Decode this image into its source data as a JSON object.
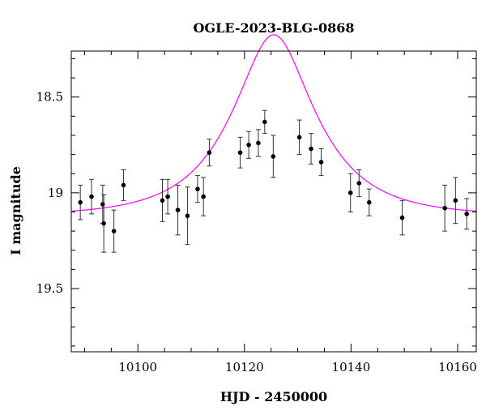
{
  "chart_data": {
    "type": "scatter",
    "title": "OGLE-2023-BLG-0868",
    "xlabel": "HJD - 2450000",
    "ylabel": "I magnitude",
    "xlim": [
      10087.5,
      10163.5
    ],
    "ylim": [
      19.83,
      18.26
    ],
    "y_inverted": true,
    "grid": false,
    "legend": "none",
    "x_ticks": [
      {
        "value": 10100,
        "label": "10100"
      },
      {
        "value": 10120,
        "label": "10120"
      },
      {
        "value": 10140,
        "label": "10140"
      },
      {
        "value": 10160,
        "label": "10160"
      }
    ],
    "y_ticks": [
      {
        "value": 18.5,
        "label": "18.5"
      },
      {
        "value": 19,
        "label": "19"
      },
      {
        "value": 19.5,
        "label": "19.5"
      }
    ],
    "x_minor_step": 5,
    "y_minor_step": 0.1,
    "colors": {
      "points": "#000000",
      "errorbars": "#333333",
      "model": "#ff00ff",
      "axes": "#000000"
    },
    "series": [
      {
        "type": "scatter-errorbar",
        "points": [
          {
            "x": 10089.2,
            "y": 19.05,
            "err": 0.09
          },
          {
            "x": 10091.3,
            "y": 19.02,
            "err": 0.09
          },
          {
            "x": 10093.4,
            "y": 19.06,
            "err": 0.1
          },
          {
            "x": 10093.6,
            "y": 19.16,
            "err": 0.15
          },
          {
            "x": 10095.5,
            "y": 19.2,
            "err": 0.11
          },
          {
            "x": 10097.3,
            "y": 18.96,
            "err": 0.08
          },
          {
            "x": 10104.6,
            "y": 19.04,
            "err": 0.11
          },
          {
            "x": 10105.6,
            "y": 19.02,
            "err": 0.09
          },
          {
            "x": 10107.5,
            "y": 19.09,
            "err": 0.13
          },
          {
            "x": 10109.3,
            "y": 19.12,
            "err": 0.15
          },
          {
            "x": 10111.2,
            "y": 18.98,
            "err": 0.07
          },
          {
            "x": 10112.3,
            "y": 19.02,
            "err": 0.1
          },
          {
            "x": 10113.4,
            "y": 18.79,
            "err": 0.07
          },
          {
            "x": 10119.2,
            "y": 18.79,
            "err": 0.08
          },
          {
            "x": 10120.8,
            "y": 18.75,
            "err": 0.07
          },
          {
            "x": 10122.6,
            "y": 18.74,
            "err": 0.07
          },
          {
            "x": 10123.8,
            "y": 18.63,
            "err": 0.06
          },
          {
            "x": 10125.4,
            "y": 18.81,
            "err": 0.11
          },
          {
            "x": 10130.3,
            "y": 18.71,
            "err": 0.09
          },
          {
            "x": 10132.5,
            "y": 18.77,
            "err": 0.08
          },
          {
            "x": 10134.4,
            "y": 18.84,
            "err": 0.07
          },
          {
            "x": 10139.9,
            "y": 19.0,
            "err": 0.1
          },
          {
            "x": 10141.5,
            "y": 18.95,
            "err": 0.07
          },
          {
            "x": 10143.4,
            "y": 19.05,
            "err": 0.07
          },
          {
            "x": 10149.6,
            "y": 19.13,
            "err": 0.09
          },
          {
            "x": 10157.6,
            "y": 19.08,
            "err": 0.12
          },
          {
            "x": 10159.6,
            "y": 19.04,
            "err": 0.12
          },
          {
            "x": 10161.7,
            "y": 19.11,
            "err": 0.08
          }
        ]
      },
      {
        "type": "model-curve",
        "model": {
          "kind": "pspl",
          "t0": 10125.5,
          "u0": 0.45,
          "tE": 14,
          "baseline": 19.12
        }
      }
    ]
  }
}
